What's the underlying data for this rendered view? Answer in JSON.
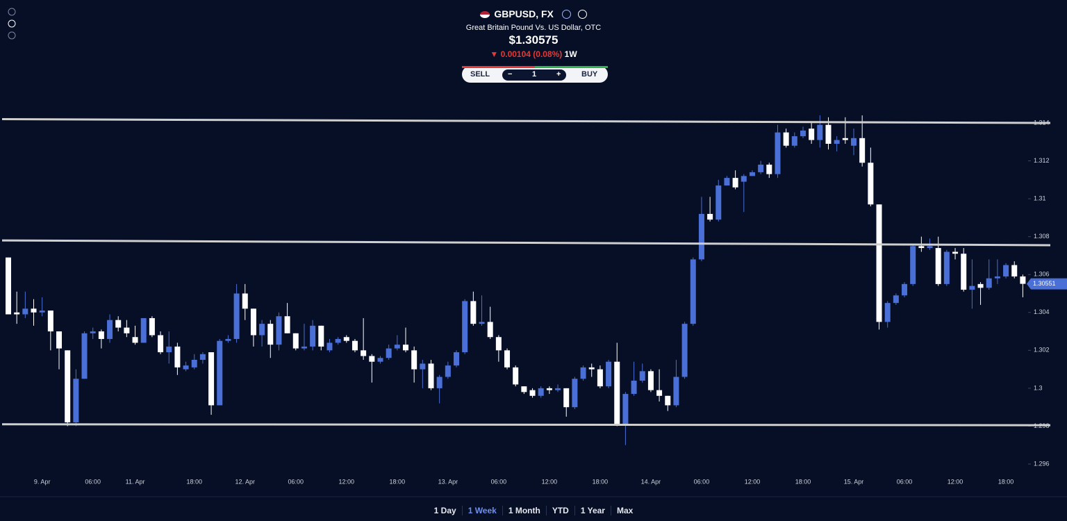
{
  "header": {
    "symbol": "GBPUSD, FX",
    "description": "Great Britain Pound Vs. US Dollar, OTC",
    "price": "$1.30575",
    "change": "0.00104 (0.08%)",
    "period": "1W"
  },
  "controls": {
    "sell": "SELL",
    "minus": "−",
    "quantity": "1",
    "plus": "+",
    "buy": "BUY"
  },
  "ranges": {
    "items": [
      "1 Day",
      "1 Week",
      "1 Month",
      "YTD",
      "1 Year",
      "Max"
    ],
    "active": 1
  },
  "chart_data": {
    "type": "candlestick",
    "up_color": "#4a6fd6",
    "down_color": "#ffffff",
    "level_color": "#cfcfcf",
    "ylim": [
      1.296,
      1.314
    ],
    "yticks": [
      1.296,
      1.298,
      1.3,
      1.302,
      1.304,
      1.306,
      1.308,
      1.31,
      1.312,
      1.314
    ],
    "last_price": 1.30551,
    "levels": [
      {
        "start": 1.3142,
        "end": 1.314
      },
      {
        "start": 1.3078,
        "end": 1.30755
      },
      {
        "start": 1.2981,
        "end": 1.29805
      }
    ],
    "categories": [
      null,
      null,
      null,
      null,
      "9. Apr",
      null,
      null,
      null,
      null,
      null,
      "06:00",
      null,
      null,
      null,
      null,
      "11. Apr",
      null,
      null,
      null,
      null,
      null,
      null,
      "18:00",
      null,
      null,
      null,
      null,
      null,
      "12. Apr",
      null,
      null,
      null,
      null,
      null,
      "06:00",
      null,
      null,
      null,
      null,
      null,
      "12:00",
      null,
      null,
      null,
      null,
      null,
      "18:00",
      null,
      null,
      null,
      null,
      null,
      "13. Apr",
      null,
      null,
      null,
      null,
      null,
      "06:00",
      null,
      null,
      null,
      null,
      null,
      "12:00",
      null,
      null,
      null,
      null,
      null,
      "18:00",
      null,
      null,
      null,
      null,
      null,
      "14. Apr",
      null,
      null,
      null,
      null,
      null,
      "06:00",
      null,
      null,
      null,
      null,
      null,
      "12:00",
      null,
      null,
      null,
      null,
      null,
      "18:00",
      null,
      null,
      null,
      null,
      null,
      "15. Apr",
      null,
      null,
      null,
      null,
      null,
      "06:00",
      null,
      null,
      null,
      null,
      null,
      "12:00",
      null,
      null,
      null,
      null,
      null,
      "18:00",
      null,
      null
    ],
    "open": [
      1.3069,
      1.304,
      1.3039,
      1.3042,
      1.304,
      1.3041,
      1.303,
      1.302,
      1.2982,
      1.3005,
      1.3029,
      1.303,
      1.3026,
      1.3036,
      1.3032,
      1.3027,
      1.3024,
      1.3037,
      1.3028,
      1.3019,
      1.3022,
      1.301,
      1.3011,
      1.3015,
      1.3019,
      1.2991,
      1.3025,
      1.3026,
      1.305,
      1.3042,
      1.3028,
      1.3034,
      1.3023,
      1.3038,
      1.3029,
      1.3021,
      1.3022,
      1.3033,
      1.302,
      1.3024,
      1.3027,
      1.3025,
      1.302,
      1.3017,
      1.3014,
      1.3016,
      1.3021,
      1.3023,
      1.302,
      1.301,
      1.3013,
      1.3,
      1.3006,
      1.3012,
      1.3019,
      1.3046,
      1.3034,
      1.3035,
      1.3027,
      1.302,
      1.3011,
      1.3001,
      1.2999,
      1.2996,
      1.3,
      1.2999,
      1.3,
      1.299,
      1.3005,
      1.3011,
      1.301,
      1.3001,
      1.3014,
      1.2981,
      1.2997,
      1.3004,
      1.3009,
      1.2999,
      1.2996,
      1.2991,
      1.3006,
      1.3034,
      1.3068,
      1.3092,
      1.3089,
      1.3107,
      1.3111,
      1.3109,
      1.3112,
      1.3114,
      1.3118,
      1.3113,
      1.3135,
      1.3128,
      1.3133,
      1.3137,
      1.3131,
      1.3139,
      1.3129,
      1.3132,
      1.3128,
      1.3132,
      1.3119,
      1.3097,
      1.3035,
      1.3045,
      1.3049,
      1.3055,
      1.3075,
      1.3074,
      1.3074,
      1.3055,
      1.3072,
      1.3071,
      1.3052,
      1.3055,
      1.3053,
      1.3058,
      1.3059,
      1.3065,
      1.3059
    ],
    "high": [
      1.3069,
      1.3051,
      1.3051,
      1.3047,
      1.3048,
      1.3041,
      1.303,
      1.302,
      1.301,
      1.303,
      1.3032,
      1.3031,
      1.3039,
      1.3038,
      1.3036,
      1.3033,
      1.3037,
      1.3038,
      1.303,
      1.303,
      1.3024,
      1.3014,
      1.3018,
      1.3019,
      1.3019,
      1.3026,
      1.3028,
      1.3055,
      1.3055,
      1.3042,
      1.3036,
      1.3036,
      1.304,
      1.3045,
      1.3029,
      1.3034,
      1.3036,
      1.3033,
      1.3026,
      1.3027,
      1.3028,
      1.3026,
      1.3037,
      1.3018,
      1.3017,
      1.3023,
      1.3028,
      1.3032,
      1.3022,
      1.3015,
      1.3015,
      1.3007,
      1.3014,
      1.302,
      1.3047,
      1.3051,
      1.3049,
      1.3043,
      1.3028,
      1.3021,
      1.3012,
      1.3001,
      1.3,
      1.3001,
      1.3001,
      1.3002,
      1.3,
      1.3006,
      1.3012,
      1.3013,
      1.3012,
      1.3015,
      1.3024,
      1.2998,
      1.3014,
      1.3013,
      1.301,
      1.301,
      1.2996,
      1.3015,
      1.3035,
      1.3069,
      1.3101,
      1.3101,
      1.311,
      1.3112,
      1.3115,
      1.3113,
      1.3115,
      1.312,
      1.3119,
      1.3139,
      1.3137,
      1.3135,
      1.3138,
      1.314,
      1.3144,
      1.3143,
      1.3133,
      1.3143,
      1.3137,
      1.3144,
      1.3127,
      1.3097,
      1.3046,
      1.305,
      1.3056,
      1.3076,
      1.308,
      1.3079,
      1.308,
      1.3073,
      1.3074,
      1.3074,
      1.3068,
      1.3056,
      1.3068,
      1.3068,
      1.3066,
      1.3067,
      1.306
    ],
    "low": [
      1.3039,
      1.3034,
      1.3037,
      1.3033,
      1.3038,
      1.302,
      1.301,
      1.298,
      1.298,
      1.3005,
      1.3026,
      1.3021,
      1.3024,
      1.303,
      1.3027,
      1.3023,
      1.3024,
      1.3027,
      1.3018,
      1.3013,
      1.3007,
      1.3009,
      1.301,
      1.3013,
      1.2986,
      1.2991,
      1.3024,
      1.3024,
      1.3036,
      1.3022,
      1.3022,
      1.3016,
      1.302,
      1.3029,
      1.302,
      1.302,
      1.302,
      1.302,
      1.3019,
      1.3023,
      1.3024,
      1.3019,
      1.3015,
      1.3003,
      1.3013,
      1.3015,
      1.302,
      1.3019,
      1.3003,
      1.3,
      1.2999,
      1.2992,
      1.3005,
      1.3011,
      1.3018,
      1.3033,
      1.3033,
      1.3026,
      1.3014,
      1.301,
      1.3001,
      1.2997,
      1.2995,
      1.2995,
      1.2997,
      1.2998,
      1.2985,
      1.2989,
      1.3004,
      1.3006,
      1.3,
      1.3,
      1.298,
      1.297,
      1.2996,
      1.3003,
      1.2998,
      1.2993,
      1.2988,
      1.299,
      1.3005,
      1.3033,
      1.3067,
      1.3088,
      1.3088,
      1.3107,
      1.3105,
      1.3093,
      1.3112,
      1.3113,
      1.3111,
      1.3111,
      1.3127,
      1.3127,
      1.3132,
      1.3129,
      1.3127,
      1.3126,
      1.3125,
      1.3129,
      1.3123,
      1.3117,
      1.3096,
      1.3031,
      1.3032,
      1.3044,
      1.3048,
      1.3054,
      1.3072,
      1.3073,
      1.3054,
      1.3054,
      1.3068,
      1.3051,
      1.3042,
      1.3044,
      1.3052,
      1.3055,
      1.3058,
      1.3058,
      1.3048
    ],
    "close": [
      1.3039,
      1.3039,
      1.3042,
      1.304,
      1.3041,
      1.303,
      1.3021,
      1.2982,
      1.3005,
      1.3029,
      1.303,
      1.3026,
      1.3036,
      1.3032,
      1.3029,
      1.3024,
      1.3037,
      1.3028,
      1.3019,
      1.3022,
      1.3011,
      1.3012,
      1.3015,
      1.3018,
      1.2991,
      1.3025,
      1.3026,
      1.305,
      1.3042,
      1.3028,
      1.3034,
      1.3023,
      1.3038,
      1.3029,
      1.3021,
      1.3022,
      1.3033,
      1.3022,
      1.3024,
      1.3026,
      1.3025,
      1.302,
      1.3017,
      1.3014,
      1.3016,
      1.3021,
      1.3023,
      1.302,
      1.301,
      1.3013,
      1.3,
      1.3006,
      1.3012,
      1.3019,
      1.3046,
      1.3034,
      1.3035,
      1.3027,
      1.302,
      1.3011,
      1.3002,
      1.2998,
      1.2996,
      1.3,
      1.2999,
      1.3,
      1.299,
      1.3005,
      1.3011,
      1.301,
      1.3001,
      1.3014,
      1.2981,
      1.2997,
      1.3004,
      1.3009,
      1.2999,
      1.2996,
      1.2991,
      1.3006,
      1.3034,
      1.3068,
      1.3092,
      1.3089,
      1.3107,
      1.3111,
      1.3106,
      1.3112,
      1.3114,
      1.3118,
      1.3113,
      1.3135,
      1.3128,
      1.3133,
      1.3136,
      1.3131,
      1.3139,
      1.3129,
      1.3131,
      1.3131,
      1.3132,
      1.3119,
      1.3097,
      1.3035,
      1.3045,
      1.3049,
      1.3055,
      1.3075,
      1.3074,
      1.3075,
      1.3055,
      1.3072,
      1.3071,
      1.3052,
      1.3054,
      1.3053,
      1.3058,
      1.3059,
      1.3065,
      1.3059,
      1.30551
    ]
  }
}
